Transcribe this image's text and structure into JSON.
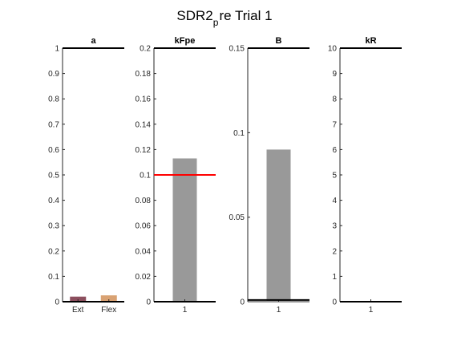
{
  "title": {
    "prefix": "SDR2",
    "subscript": "p",
    "suffix": "re Trial 1"
  },
  "chart_data": [
    {
      "type": "bar",
      "title": "a",
      "categories": [
        "Ext",
        "Flex"
      ],
      "values": [
        0.02,
        0.025
      ],
      "bar_colors": [
        "#8c4f5e",
        "#d9a273"
      ],
      "ylim": [
        0,
        1
      ],
      "yticks": [
        "0",
        "0.1",
        "0.2",
        "0.3",
        "0.4",
        "0.5",
        "0.6",
        "0.7",
        "0.8",
        "0.9",
        "1"
      ],
      "grid": false,
      "reference_lines": [
        {
          "y": 1,
          "color": "#000000"
        },
        {
          "y": 0,
          "color": "#000000"
        }
      ]
    },
    {
      "type": "bar",
      "title": "kFpe",
      "categories": [
        "1"
      ],
      "values": [
        0.113
      ],
      "bar_colors": [
        "#999999"
      ],
      "ylim": [
        0,
        0.2
      ],
      "yticks": [
        "0",
        "0.02",
        "0.04",
        "0.06",
        "0.08",
        "0.1",
        "0.12",
        "0.14",
        "0.16",
        "0.18",
        "0.2"
      ],
      "grid": false,
      "reference_lines": [
        {
          "y": 0.2,
          "color": "#000000"
        },
        {
          "y": 0.1,
          "color": "#ff0000"
        },
        {
          "y": 0,
          "color": "#000000"
        }
      ]
    },
    {
      "type": "bar",
      "title": "B",
      "categories": [
        "1"
      ],
      "values": [
        0.09
      ],
      "bar_colors": [
        "#999999"
      ],
      "ylim": [
        0,
        0.15
      ],
      "yticks": [
        "0",
        "0.05",
        "0.1",
        "0.15"
      ],
      "grid": false,
      "reference_lines": [
        {
          "y": 0.15,
          "color": "#000000"
        },
        {
          "y": 0.001,
          "color": "#000000"
        }
      ]
    },
    {
      "type": "bar",
      "title": "kR",
      "categories": [
        "1"
      ],
      "values": [
        0
      ],
      "bar_colors": [
        "#999999"
      ],
      "ylim": [
        0,
        10
      ],
      "yticks": [
        "0",
        "1",
        "2",
        "3",
        "4",
        "5",
        "6",
        "7",
        "8",
        "9",
        "10"
      ],
      "grid": false,
      "reference_lines": [
        {
          "y": 10,
          "color": "#000000"
        },
        {
          "y": 0,
          "color": "#000000"
        }
      ]
    }
  ]
}
